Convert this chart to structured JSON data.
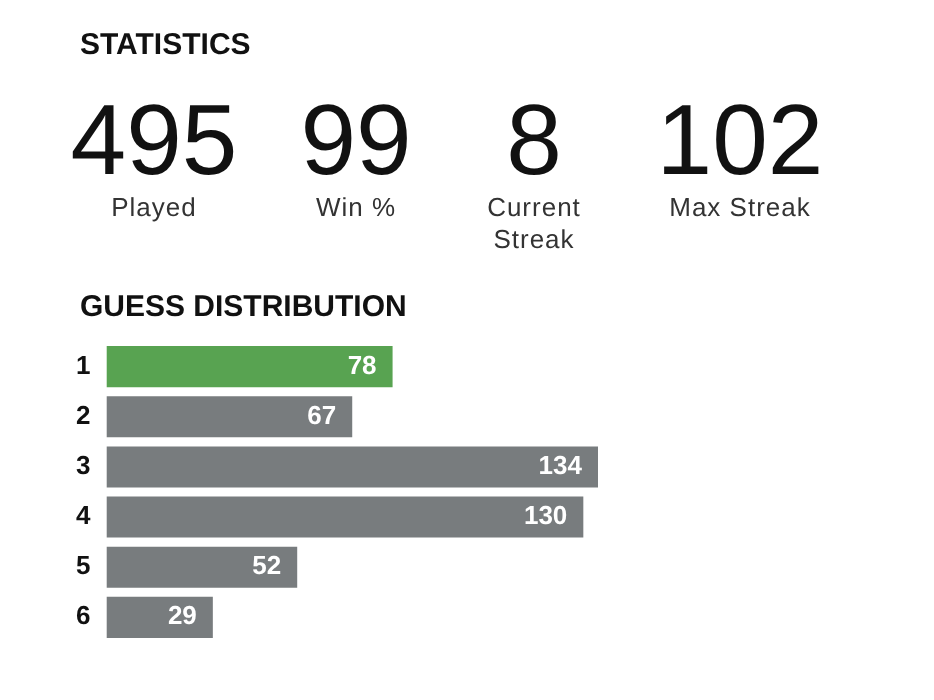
{
  "chart_data": [
    {
      "type": "other",
      "title": "STATISTICS",
      "categories": [
        "Played",
        "Win %",
        "Current Streak",
        "Max Streak"
      ],
      "values": [
        495,
        99,
        8,
        102
      ],
      "data_labels": true
    },
    {
      "type": "bar",
      "orientation": "horizontal",
      "title": "GUESS DISTRIBUTION",
      "categories": [
        "1",
        "2",
        "3",
        "4",
        "5",
        "6"
      ],
      "values": [
        78,
        67,
        134,
        130,
        52,
        29
      ],
      "colors": [
        "#58a351",
        "#787c7e",
        "#787c7e",
        "#787c7e",
        "#787c7e",
        "#787c7e"
      ],
      "data_labels": true,
      "tick_labels": "y"
    }
  ]
}
